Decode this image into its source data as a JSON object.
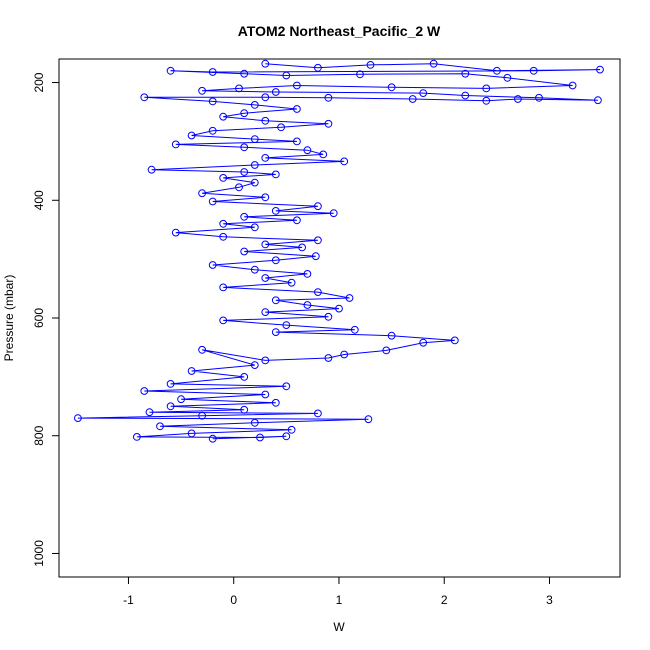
{
  "chart_data": {
    "type": "line",
    "title": "ATOM2 Northeast_Pacific_2 W",
    "xlabel": "W",
    "ylabel": "Pressure (mbar)",
    "xlim": [
      -1.66,
      3.67
    ],
    "ylim": [
      1040,
      160
    ],
    "y_axis_inverted": true,
    "x_ticks": [
      -1,
      0,
      1,
      2,
      3
    ],
    "x_tick_labels": [
      "-1",
      "0",
      "1",
      "2",
      "3"
    ],
    "y_ticks": [
      200,
      400,
      600,
      800,
      1000
    ],
    "y_tick_labels": [
      "200",
      "400",
      "600",
      "800",
      "1000"
    ],
    "grid": false,
    "legend": "none",
    "marker": "open-circle",
    "series_color": "#0000ff",
    "series": [
      {
        "name": "",
        "points": [
          [
            0.3,
            168
          ],
          [
            0.8,
            175
          ],
          [
            1.3,
            170
          ],
          [
            1.9,
            168
          ],
          [
            2.5,
            180
          ],
          [
            3.48,
            178
          ],
          [
            2.85,
            180
          ],
          [
            -0.2,
            182
          ],
          [
            -0.6,
            180
          ],
          [
            0.1,
            185
          ],
          [
            0.5,
            188
          ],
          [
            1.2,
            186
          ],
          [
            2.2,
            185
          ],
          [
            2.6,
            192
          ],
          [
            3.22,
            205
          ],
          [
            2.4,
            210
          ],
          [
            1.5,
            208
          ],
          [
            0.6,
            205
          ],
          [
            0.05,
            210
          ],
          [
            -0.3,
            214
          ],
          [
            0.4,
            216
          ],
          [
            1.8,
            218
          ],
          [
            2.2,
            222
          ],
          [
            2.9,
            226
          ],
          [
            3.46,
            230
          ],
          [
            2.7,
            228
          ],
          [
            2.4,
            231
          ],
          [
            1.7,
            228
          ],
          [
            0.9,
            226
          ],
          [
            0.3,
            225
          ],
          [
            -0.85,
            225
          ],
          [
            -0.2,
            232
          ],
          [
            0.2,
            238
          ],
          [
            0.6,
            245
          ],
          [
            0.1,
            252
          ],
          [
            -0.1,
            258
          ],
          [
            0.3,
            265
          ],
          [
            0.9,
            270
          ],
          [
            0.45,
            276
          ],
          [
            -0.2,
            282
          ],
          [
            -0.4,
            290
          ],
          [
            0.2,
            296
          ],
          [
            0.6,
            300
          ],
          [
            -0.55,
            305
          ],
          [
            0.1,
            310
          ],
          [
            0.7,
            315
          ],
          [
            0.85,
            322
          ],
          [
            0.3,
            328
          ],
          [
            1.05,
            334
          ],
          [
            0.2,
            340
          ],
          [
            -0.78,
            348
          ],
          [
            0.1,
            352
          ],
          [
            0.4,
            356
          ],
          [
            -0.1,
            362
          ],
          [
            0.2,
            370
          ],
          [
            0.05,
            378
          ],
          [
            -0.3,
            388
          ],
          [
            0.3,
            395
          ],
          [
            -0.2,
            402
          ],
          [
            0.8,
            410
          ],
          [
            0.4,
            418
          ],
          [
            0.95,
            422
          ],
          [
            0.1,
            428
          ],
          [
            0.6,
            434
          ],
          [
            -0.1,
            440
          ],
          [
            0.2,
            446
          ],
          [
            -0.55,
            455
          ],
          [
            -0.1,
            462
          ],
          [
            0.8,
            468
          ],
          [
            0.3,
            475
          ],
          [
            0.65,
            480
          ],
          [
            0.1,
            487
          ],
          [
            0.78,
            495
          ],
          [
            0.4,
            502
          ],
          [
            -0.2,
            510
          ],
          [
            0.2,
            518
          ],
          [
            0.7,
            525
          ],
          [
            0.3,
            532
          ],
          [
            0.55,
            540
          ],
          [
            -0.1,
            548
          ],
          [
            0.8,
            556
          ],
          [
            1.1,
            566
          ],
          [
            0.4,
            570
          ],
          [
            0.7,
            578
          ],
          [
            1.0,
            584
          ],
          [
            0.3,
            590
          ],
          [
            0.9,
            598
          ],
          [
            -0.1,
            604
          ],
          [
            0.5,
            612
          ],
          [
            1.15,
            620
          ],
          [
            0.4,
            624
          ],
          [
            1.5,
            630
          ],
          [
            2.1,
            638
          ],
          [
            1.8,
            642
          ],
          [
            1.45,
            655
          ],
          [
            1.05,
            662
          ],
          [
            0.9,
            668
          ],
          [
            0.3,
            672
          ],
          [
            -0.3,
            654
          ],
          [
            0.2,
            680
          ],
          [
            -0.4,
            690
          ],
          [
            0.1,
            700
          ],
          [
            -0.6,
            712
          ],
          [
            0.5,
            716
          ],
          [
            -0.85,
            724
          ],
          [
            0.3,
            730
          ],
          [
            -0.5,
            738
          ],
          [
            0.4,
            744
          ],
          [
            -0.6,
            750
          ],
          [
            0.1,
            756
          ],
          [
            -0.8,
            760
          ],
          [
            0.8,
            762
          ],
          [
            -0.3,
            766
          ],
          [
            -1.48,
            770
          ],
          [
            1.28,
            772
          ],
          [
            0.2,
            778
          ],
          [
            -0.7,
            784
          ],
          [
            0.55,
            790
          ],
          [
            -0.4,
            796
          ],
          [
            -0.92,
            802
          ],
          [
            0.25,
            803
          ],
          [
            0.5,
            801
          ],
          [
            -0.2,
            805
          ]
        ]
      }
    ]
  }
}
